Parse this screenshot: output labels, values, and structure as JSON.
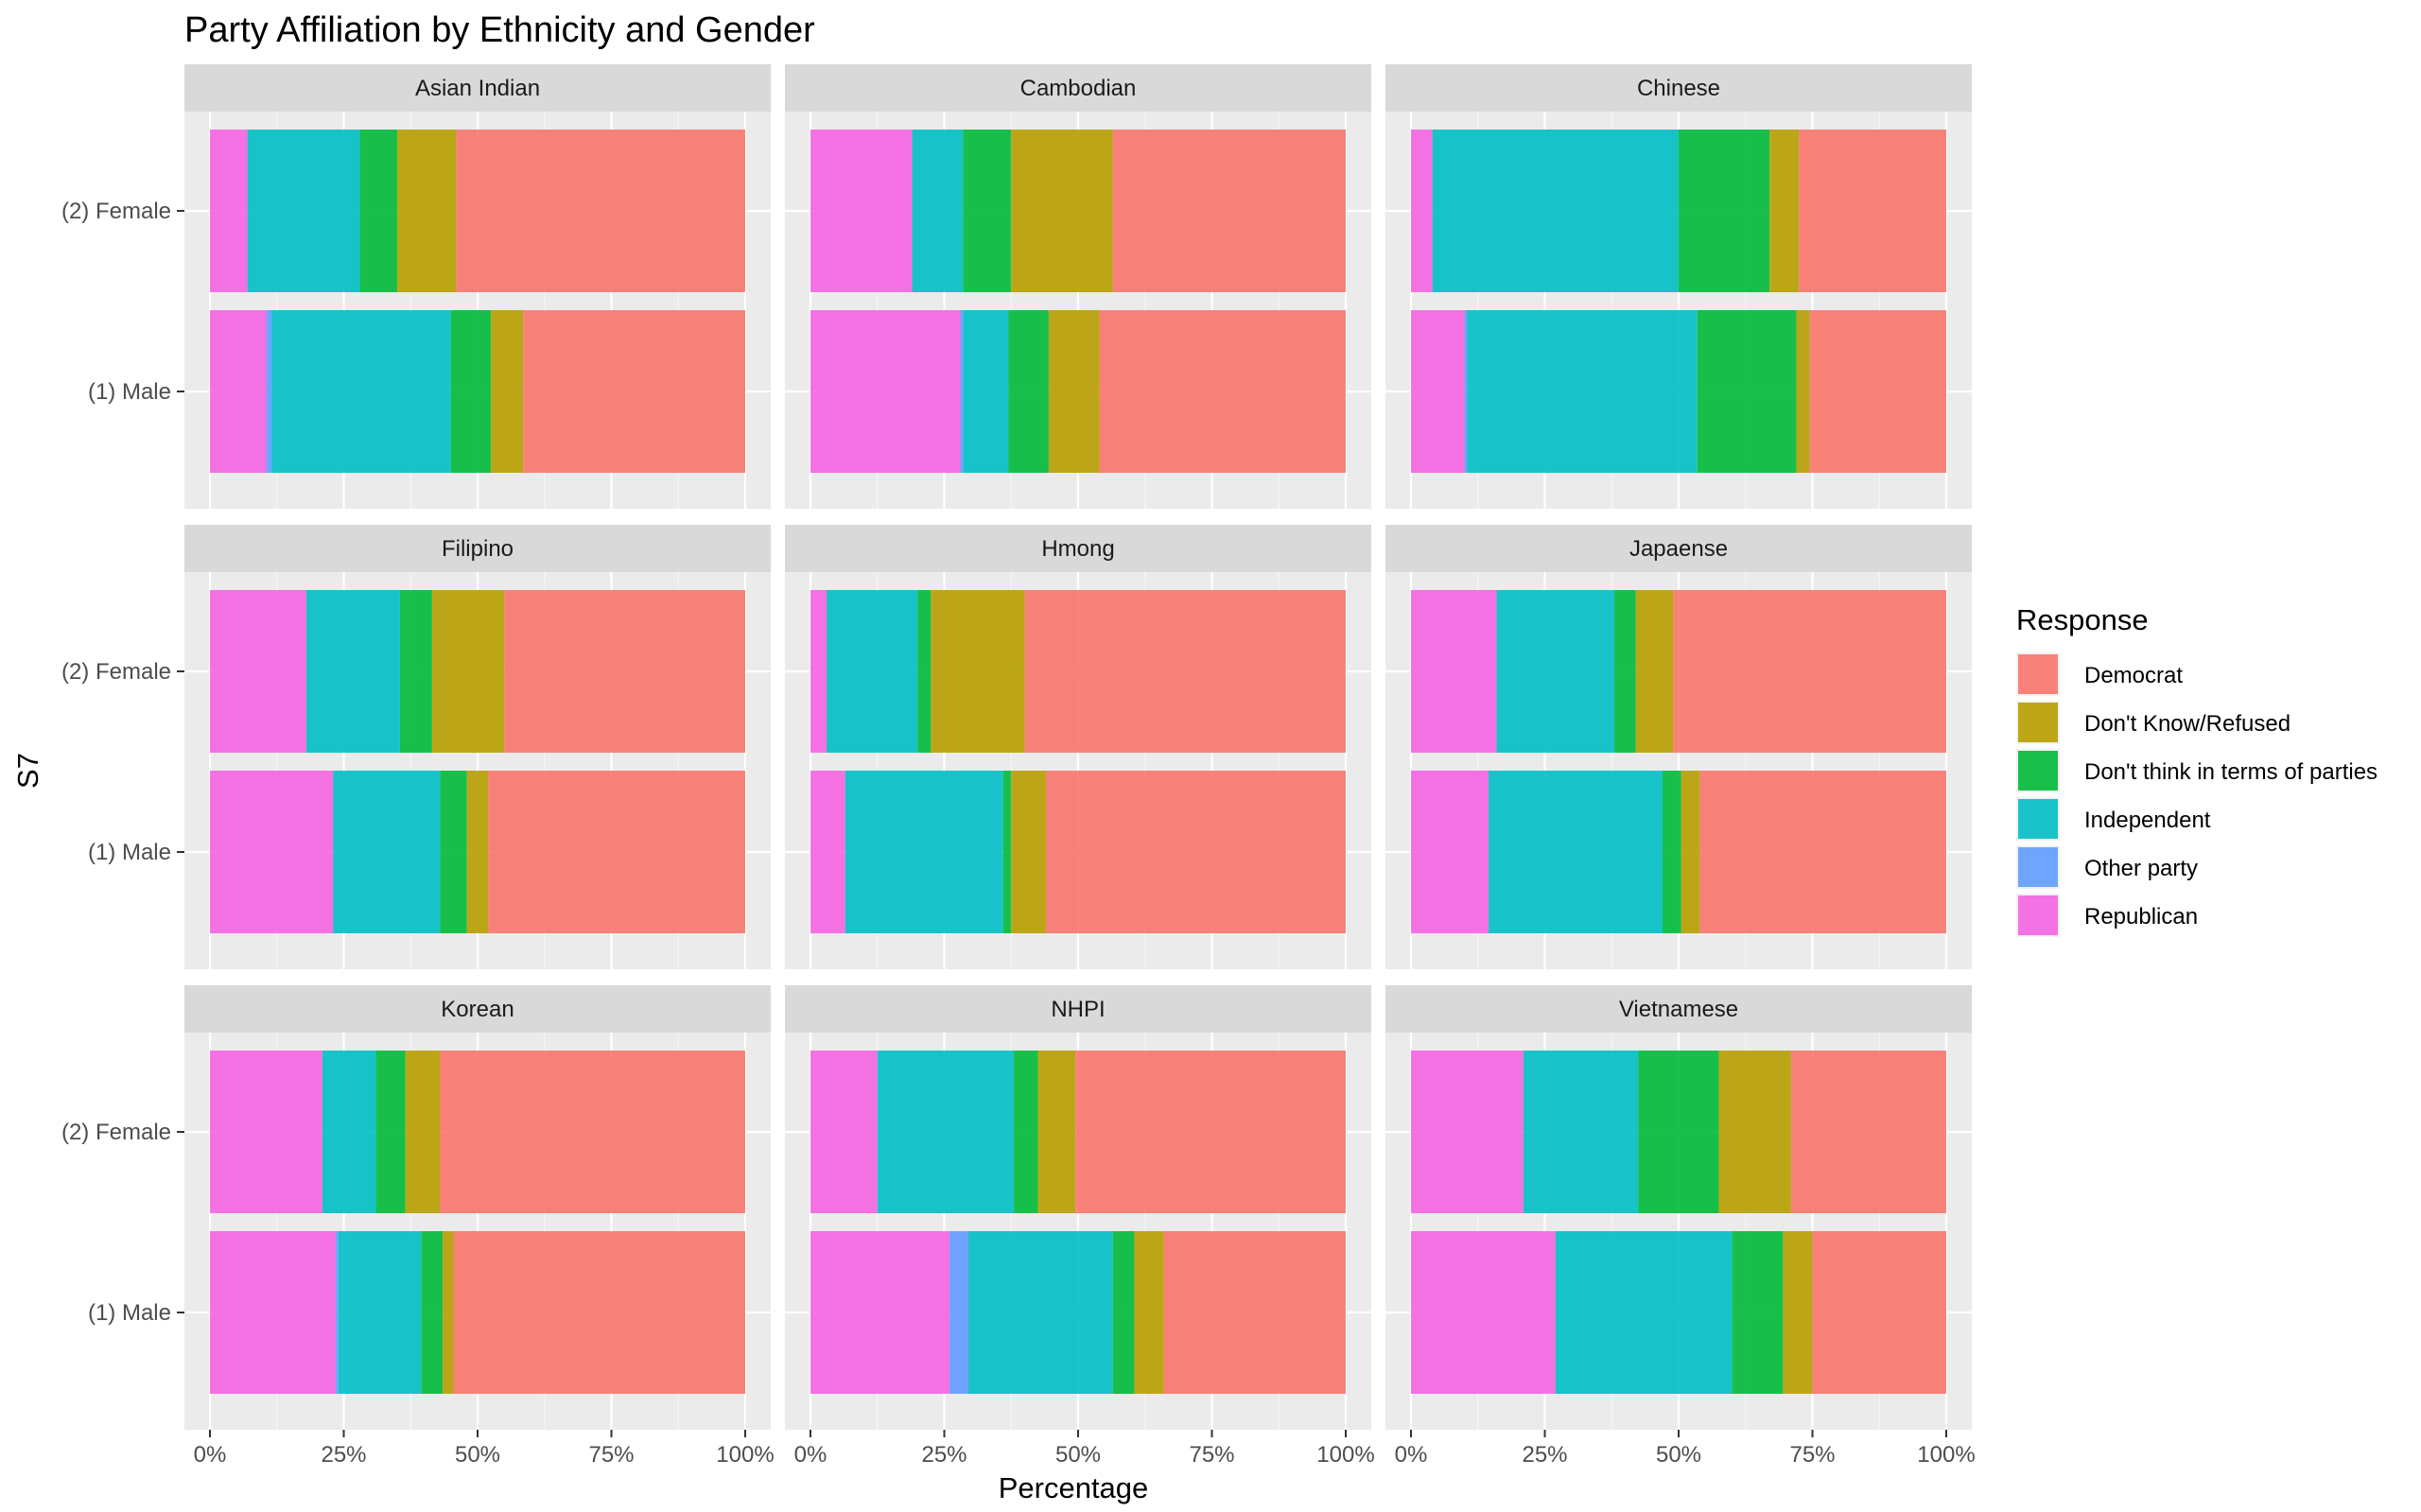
{
  "chart_data": {
    "type": "bar",
    "orientation": "horizontal",
    "stacked": true,
    "title": "Party Affiliation by Ethnicity and Gender",
    "xlabel": "Percentage",
    "ylabel": "S7",
    "xlim": [
      0,
      100
    ],
    "x_ticks": [
      "0%",
      "25%",
      "50%",
      "75%",
      "100%"
    ],
    "categories": [
      "(1) Male",
      "(2) Female"
    ],
    "legend": {
      "title": "Response",
      "position": "right",
      "entries": [
        "Democrat",
        "Don't Know/Refused",
        "Don't think in terms of parties",
        "Independent",
        "Other party",
        "Republican"
      ]
    },
    "colors": {
      "Democrat": "#F8766D",
      "Don't Know/Refused": "#B79F00",
      "Don't think in terms of parties": "#00BA38",
      "Independent": "#00BFC4",
      "Other party": "#619CFF",
      "Republican": "#F564E3"
    },
    "stack_order": [
      "Republican",
      "Other party",
      "Independent",
      "Don't think in terms of parties",
      "Don't Know/Refused",
      "Democrat"
    ],
    "grid": true,
    "panels": [
      {
        "title": "Asian Indian",
        "bars": {
          "(2) Female": {
            "Republican": 7,
            "Other party": 0,
            "Independent": 21,
            "Don't think in terms of parties": 7,
            "Don't Know/Refused": 11,
            "Democrat": 54
          },
          "(1) Male": {
            "Republican": 10.5,
            "Other party": 1,
            "Independent": 33.5,
            "Don't think in terms of parties": 7.5,
            "Don't Know/Refused": 6,
            "Democrat": 41.5
          }
        }
      },
      {
        "title": "Cambodian",
        "bars": {
          "(2) Female": {
            "Republican": 19,
            "Other party": 0,
            "Independent": 9.5,
            "Don't think in terms of parties": 9,
            "Don't Know/Refused": 19,
            "Democrat": 43.5
          },
          "(1) Male": {
            "Republican": 28,
            "Other party": 0.5,
            "Independent": 8.5,
            "Don't think in terms of parties": 7.5,
            "Don't Know/Refused": 9.5,
            "Democrat": 46
          }
        }
      },
      {
        "title": "Chinese",
        "bars": {
          "(2) Female": {
            "Republican": 4,
            "Other party": 0,
            "Independent": 46,
            "Don't think in terms of parties": 17,
            "Don't Know/Refused": 5.5,
            "Democrat": 27.5
          },
          "(1) Male": {
            "Republican": 10,
            "Other party": 0.5,
            "Independent": 43,
            "Don't think in terms of parties": 18.5,
            "Don't Know/Refused": 2.5,
            "Democrat": 25.5
          }
        }
      },
      {
        "title": "Filipino",
        "bars": {
          "(2) Female": {
            "Republican": 18,
            "Other party": 0,
            "Independent": 17.5,
            "Don't think in terms of parties": 6,
            "Don't Know/Refused": 13.5,
            "Democrat": 45
          }
        },
        "_m": null
      },
      {
        "title": "Hmong",
        "bars": {
          "(2) Female": {
            "Republican": 3,
            "Other party": 0,
            "Independent": 17,
            "Don't think in terms of parties": 2.5,
            "Don't Know/Refused": 17.5,
            "Democrat": 60
          },
          "(1) Male": {
            "Republican": 6.5,
            "Other party": 0,
            "Independent": 29.5,
            "Don't think in terms of parties": 1.5,
            "Don't Know/Refused": 6.5,
            "Democrat": 56
          }
        }
      },
      {
        "title": "Japaense",
        "bars": {
          "(2) Female": {
            "Republican": 16,
            "Other party": 0,
            "Independent": 22,
            "Don't think in terms of parties": 4,
            "Don't Know/Refused": 7,
            "Democrat": 51
          },
          "(1) Male": {
            "Republican": 14.5,
            "Other party": 0,
            "Independent": 32.5,
            "Don't think in terms of parties": 3.5,
            "Don't Know/Refused": 3.5,
            "Democrat": 46
          }
        }
      },
      {
        "title": "Korean",
        "bars": {
          "(2) Female": {
            "Republican": 21,
            "Other party": 0,
            "Independent": 10,
            "Don't think in terms of parties": 5.5,
            "Don't Know/Refused": 6.5,
            "Democrat": 57
          },
          "(1) Male": {
            "Republican": 23.5,
            "Other party": 0.5,
            "Independent": 15.5,
            "Don't think in terms of parties": 4,
            "Don't Know/Refused": 2,
            "Democrat": 54.5
          }
        }
      },
      {
        "title": "NHPI",
        "bars": {
          "(2) Female": {
            "Republican": 12.5,
            "Other party": 0,
            "Independent": 25.5,
            "Don't think in terms of parties": 4.5,
            "Don't Know/Refused": 7,
            "Democrat": 50.5
          },
          "(1) Male": {
            "Republican": 26,
            "Other party": 3.5,
            "Independent": 27,
            "Don't think in terms of parties": 4,
            "Don't Know/Refused": 5.5,
            "Democrat": 34
          }
        }
      },
      {
        "title": "Vietnamese",
        "bars": {
          "(2) Female": {
            "Republican": 21,
            "Other party": 0,
            "Independent": 21.5,
            "Don't think in terms of parties": 15,
            "Don't Know/Refused": 13.5,
            "Democrat": 29
          },
          "(1) Male": {
            "Republican": 27,
            "Other party": 0,
            "Independent": 33,
            "Don't think in terms of parties": 9.5,
            "Don't Know/Refused": 5.5,
            "Democrat": 25
          }
        }
      }
    ]
  }
}
